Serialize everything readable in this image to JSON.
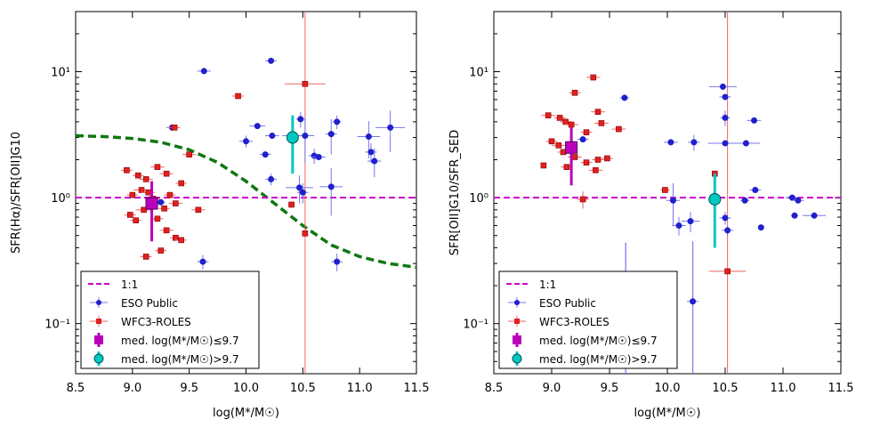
{
  "colors": {
    "eso": "#2020cc",
    "eso_err": "#7777ee",
    "wfc3": "#e02020",
    "wfc3_err": "#ee6666",
    "med_low": "#bb00bb",
    "med_high": "#00c8c0",
    "one_to_one": "#cc00cc",
    "curve": "#117711"
  },
  "chart_data": [
    {
      "type": "scatter",
      "xlabel": "log(M*/M☉)",
      "ylabel": "SFR(Hα)/SFR[OII]G10",
      "xlim": [
        8.5,
        11.5
      ],
      "ylim": [
        0.04,
        30
      ],
      "xscale": "linear",
      "yscale": "log",
      "x_ticks": [
        8.5,
        9.0,
        9.5,
        10.0,
        10.5,
        11.0,
        11.5
      ],
      "x_tick_labels": [
        "8.5",
        "9.0",
        "9.5",
        "10.0",
        "10.5",
        "11.0",
        "11.5"
      ],
      "y_ticks": [
        0.1,
        1,
        10
      ],
      "y_tick_labels": [
        "10⁻¹",
        "10⁰",
        "10¹"
      ],
      "reference_line": {
        "name": "1:1",
        "y": 1.0
      },
      "model_curve": {
        "name": "model",
        "x": [
          8.5,
          8.75,
          9.0,
          9.25,
          9.5,
          9.75,
          10.0,
          10.25,
          10.5,
          10.75,
          11.0,
          11.25,
          11.5
        ],
        "y": [
          3.1,
          3.05,
          2.95,
          2.75,
          2.4,
          1.9,
          1.35,
          0.9,
          0.6,
          0.42,
          0.34,
          0.3,
          0.28
        ]
      },
      "series": [
        {
          "name": "ESO Public",
          "points": [
            {
              "x": 9.63,
              "y": 10.1,
              "xerr": 0.06,
              "yerr": 0
            },
            {
              "x": 10.22,
              "y": 12.2,
              "xerr": 0.05,
              "yerr": 0.08
            },
            {
              "x": 9.35,
              "y": 3.6,
              "xerr": 0.05,
              "yerr": 0
            },
            {
              "x": 10.1,
              "y": 3.7,
              "xerr": 0.07,
              "yerr": 0
            },
            {
              "x": 10.23,
              "y": 3.1,
              "xerr": 0.06,
              "yerr": 0.1
            },
            {
              "x": 10.4,
              "y": 3.1,
              "xerr": 0.08,
              "yerr": 0.3
            },
            {
              "x": 10.0,
              "y": 2.8,
              "xerr": 0.06,
              "yerr": 0.3
            },
            {
              "x": 10.17,
              "y": 2.2,
              "xerr": 0.05,
              "yerr": 0
            },
            {
              "x": 10.48,
              "y": 4.2,
              "xerr": 0.04,
              "yerr": 0.6
            },
            {
              "x": 10.52,
              "y": 3.1,
              "xerr": 0.08,
              "yerr": 1.2
            },
            {
              "x": 10.6,
              "y": 2.15,
              "xerr": 0.05,
              "yerr": 0.3
            },
            {
              "x": 10.64,
              "y": 2.1,
              "xerr": 0.06,
              "yerr": 0
            },
            {
              "x": 10.75,
              "y": 3.2,
              "xerr": 0.05,
              "yerr": 1.0
            },
            {
              "x": 10.8,
              "y": 4.0,
              "xerr": 0.04,
              "yerr": 0.5
            },
            {
              "x": 11.08,
              "y": 3.05,
              "xerr": 0.1,
              "yerr": 1.0
            },
            {
              "x": 11.1,
              "y": 2.3,
              "xerr": 0.05,
              "yerr": 0.4
            },
            {
              "x": 11.13,
              "y": 1.95,
              "xerr": 0.06,
              "yerr": 0.5
            },
            {
              "x": 11.27,
              "y": 3.6,
              "xerr": 0.13,
              "yerr": 1.3
            },
            {
              "x": 10.22,
              "y": 1.4,
              "xerr": 0.05,
              "yerr": 0.15
            },
            {
              "x": 10.47,
              "y": 1.2,
              "xerr": 0.12,
              "yerr": 0.3
            },
            {
              "x": 10.5,
              "y": 1.1,
              "xerr": 0.05,
              "yerr": 0.2
            },
            {
              "x": 10.75,
              "y": 1.22,
              "xerr": 0.1,
              "yerr": 0.5
            },
            {
              "x": 9.62,
              "y": 0.31,
              "xerr": 0.05,
              "yerr": 0.04
            },
            {
              "x": 10.8,
              "y": 0.31,
              "xerr": 0.05,
              "yerr": 0.05
            },
            {
              "x": 9.25,
              "y": 0.92,
              "xerr": 0.04,
              "yerr": 0
            }
          ]
        },
        {
          "name": "WFC3-ROLES",
          "points": [
            {
              "x": 9.93,
              "y": 6.4,
              "xerr": 0.05,
              "yerr": 0
            },
            {
              "x": 10.52,
              "y": 8.0,
              "xerr": 0.18,
              "yerr": 0
            },
            {
              "x": 9.37,
              "y": 3.6,
              "xerr": 0.05,
              "yerr": 0
            },
            {
              "x": 9.5,
              "y": 2.2,
              "xerr": 0.06,
              "yerr": 0
            },
            {
              "x": 8.95,
              "y": 1.65,
              "xerr": 0.05,
              "yerr": 0
            },
            {
              "x": 9.05,
              "y": 1.5,
              "xerr": 0.05,
              "yerr": 0
            },
            {
              "x": 9.22,
              "y": 1.75,
              "xerr": 0.06,
              "yerr": 0
            },
            {
              "x": 9.12,
              "y": 1.4,
              "xerr": 0.06,
              "yerr": 0
            },
            {
              "x": 9.3,
              "y": 1.55,
              "xerr": 0.06,
              "yerr": 0
            },
            {
              "x": 9.43,
              "y": 1.3,
              "xerr": 0.05,
              "yerr": 0
            },
            {
              "x": 9.08,
              "y": 1.15,
              "xerr": 0.07,
              "yerr": 0
            },
            {
              "x": 9.14,
              "y": 1.1,
              "xerr": 0.06,
              "yerr": 0
            },
            {
              "x": 9.0,
              "y": 1.05,
              "xerr": 0.05,
              "yerr": 0
            },
            {
              "x": 9.18,
              "y": 0.98,
              "xerr": 0.06,
              "yerr": 0
            },
            {
              "x": 9.33,
              "y": 1.05,
              "xerr": 0.05,
              "yerr": 0
            },
            {
              "x": 9.38,
              "y": 0.9,
              "xerr": 0.06,
              "yerr": 0
            },
            {
              "x": 9.28,
              "y": 0.82,
              "xerr": 0.05,
              "yerr": 0
            },
            {
              "x": 9.1,
              "y": 0.8,
              "xerr": 0.07,
              "yerr": 0
            },
            {
              "x": 8.98,
              "y": 0.73,
              "xerr": 0.05,
              "yerr": 0
            },
            {
              "x": 9.03,
              "y": 0.66,
              "xerr": 0.05,
              "yerr": 0
            },
            {
              "x": 9.22,
              "y": 0.68,
              "xerr": 0.05,
              "yerr": 0
            },
            {
              "x": 9.3,
              "y": 0.55,
              "xerr": 0.06,
              "yerr": 0
            },
            {
              "x": 9.38,
              "y": 0.48,
              "xerr": 0.05,
              "yerr": 0
            },
            {
              "x": 9.43,
              "y": 0.46,
              "xerr": 0.05,
              "yerr": 0
            },
            {
              "x": 9.25,
              "y": 0.38,
              "xerr": 0.05,
              "yerr": 0
            },
            {
              "x": 9.12,
              "y": 0.34,
              "xerr": 0.05,
              "yerr": 0
            },
            {
              "x": 9.58,
              "y": 0.8,
              "xerr": 0.06,
              "yerr": 0
            },
            {
              "x": 10.4,
              "y": 0.88,
              "xerr": 0.03,
              "yerr": 0
            },
            {
              "x": 10.52,
              "y": 0.52,
              "xerr": 0.0,
              "yerr": 0
            }
          ]
        },
        {
          "name": "med. log(M*/M☉)≤9.7",
          "points": [
            {
              "x": 9.17,
              "y": 0.9,
              "y_low": 0.45,
              "y_high": 1.35
            }
          ]
        },
        {
          "name": "med. log(M*/M☉)>9.7",
          "points": [
            {
              "x": 10.41,
              "y": 3.0,
              "y_low": 1.55,
              "y_high": 4.5
            }
          ]
        }
      ],
      "legend": {
        "placement": "lower-left",
        "entries": [
          "1:1",
          "ESO Public",
          "WFC3-ROLES",
          "med. log(M*/M☉)≤9.7",
          "med. log(M*/M☉)>9.7"
        ]
      }
    },
    {
      "type": "scatter",
      "xlabel": "log(M*/M☉)",
      "ylabel": "SFR[OII]G10/SFR_SED",
      "xlim": [
        8.5,
        11.5
      ],
      "ylim": [
        0.04,
        30
      ],
      "xscale": "linear",
      "yscale": "log",
      "x_ticks": [
        8.5,
        9.0,
        9.5,
        10.0,
        10.5,
        11.0,
        11.5
      ],
      "x_tick_labels": [
        "8.5",
        "9.0",
        "9.5",
        "10.0",
        "10.5",
        "11.0",
        "11.5"
      ],
      "y_ticks": [
        0.1,
        1,
        10
      ],
      "y_tick_labels": [
        "10⁻¹",
        "10⁰",
        "10¹"
      ],
      "reference_line": {
        "name": "1:1",
        "y": 1.0
      },
      "series": [
        {
          "name": "ESO Public",
          "points": [
            {
              "x": 9.63,
              "y": 6.2,
              "xerr": 0.04,
              "yerr": 0
            },
            {
              "x": 10.48,
              "y": 7.6,
              "xerr": 0.12,
              "yerr": 0
            },
            {
              "x": 10.5,
              "y": 6.3,
              "xerr": 0.05,
              "yerr": 0
            },
            {
              "x": 10.5,
              "y": 4.3,
              "xerr": 0.04,
              "yerr": 0.6
            },
            {
              "x": 10.75,
              "y": 4.1,
              "xerr": 0.06,
              "yerr": 0
            },
            {
              "x": 9.27,
              "y": 2.9,
              "xerr": 0.05,
              "yerr": 0
            },
            {
              "x": 10.03,
              "y": 2.75,
              "xerr": 0.06,
              "yerr": 0
            },
            {
              "x": 10.23,
              "y": 2.75,
              "xerr": 0.05,
              "yerr": 0.4
            },
            {
              "x": 10.5,
              "y": 2.7,
              "xerr": 0.15,
              "yerr": 0
            },
            {
              "x": 10.68,
              "y": 2.7,
              "xerr": 0.12,
              "yerr": 0
            },
            {
              "x": 10.76,
              "y": 1.15,
              "xerr": 0.05,
              "yerr": 0
            },
            {
              "x": 10.67,
              "y": 0.95,
              "xerr": 0.04,
              "yerr": 0
            },
            {
              "x": 11.08,
              "y": 1.0,
              "xerr": 0.06,
              "yerr": 0
            },
            {
              "x": 11.13,
              "y": 0.95,
              "xerr": 0.05,
              "yerr": 0
            },
            {
              "x": 11.27,
              "y": 0.72,
              "xerr": 0.1,
              "yerr": 0
            },
            {
              "x": 11.1,
              "y": 0.72,
              "xerr": 0.03,
              "yerr": 0
            },
            {
              "x": 10.81,
              "y": 0.58,
              "xerr": 0.0,
              "yerr": 0
            },
            {
              "x": 10.05,
              "y": 0.95,
              "xerr": 0.06,
              "yerr": 0.35
            },
            {
              "x": 10.1,
              "y": 0.6,
              "xerr": 0.06,
              "yerr": 0.1
            },
            {
              "x": 10.2,
              "y": 0.65,
              "xerr": 0.08,
              "yerr": 0.12
            },
            {
              "x": 10.5,
              "y": 0.69,
              "xerr": 0.05,
              "yerr": 0.08
            },
            {
              "x": 10.52,
              "y": 0.55,
              "xerr": 0.05,
              "yerr": 0.05
            },
            {
              "x": 10.22,
              "y": 0.15,
              "xerr": 0.05,
              "yerr": 0.3
            },
            {
              "x": 9.64,
              "y": 0.24,
              "xerr": 0.05,
              "yerr": 0.2
            }
          ]
        },
        {
          "name": "WFC3-ROLES",
          "points": [
            {
              "x": 9.36,
              "y": 9.0,
              "xerr": 0.06,
              "yerr": 0
            },
            {
              "x": 9.2,
              "y": 6.8,
              "xerr": 0.05,
              "yerr": 0
            },
            {
              "x": 8.97,
              "y": 4.5,
              "xerr": 0.06,
              "yerr": 0
            },
            {
              "x": 9.07,
              "y": 4.3,
              "xerr": 0.05,
              "yerr": 0
            },
            {
              "x": 9.12,
              "y": 4.0,
              "xerr": 0.05,
              "yerr": 0
            },
            {
              "x": 9.17,
              "y": 3.8,
              "xerr": 0.06,
              "yerr": 0
            },
            {
              "x": 9.4,
              "y": 4.8,
              "xerr": 0.06,
              "yerr": 0
            },
            {
              "x": 9.43,
              "y": 3.9,
              "xerr": 0.06,
              "yerr": 0
            },
            {
              "x": 9.3,
              "y": 3.3,
              "xerr": 0.05,
              "yerr": 0
            },
            {
              "x": 9.58,
              "y": 3.5,
              "xerr": 0.06,
              "yerr": 0
            },
            {
              "x": 9.0,
              "y": 2.8,
              "xerr": 0.05,
              "yerr": 0
            },
            {
              "x": 9.06,
              "y": 2.6,
              "xerr": 0.06,
              "yerr": 0
            },
            {
              "x": 9.1,
              "y": 2.3,
              "xerr": 0.05,
              "yerr": 0
            },
            {
              "x": 9.2,
              "y": 2.1,
              "xerr": 0.06,
              "yerr": 0
            },
            {
              "x": 9.3,
              "y": 1.9,
              "xerr": 0.05,
              "yerr": 0
            },
            {
              "x": 9.4,
              "y": 2.0,
              "xerr": 0.05,
              "yerr": 0
            },
            {
              "x": 9.48,
              "y": 2.05,
              "xerr": 0.05,
              "yerr": 0
            },
            {
              "x": 9.38,
              "y": 1.65,
              "xerr": 0.06,
              "yerr": 0
            },
            {
              "x": 8.93,
              "y": 1.8,
              "xerr": 0.0,
              "yerr": 0
            },
            {
              "x": 9.13,
              "y": 1.75,
              "xerr": 0.05,
              "yerr": 0
            },
            {
              "x": 9.98,
              "y": 1.15,
              "xerr": 0.04,
              "yerr": 0
            },
            {
              "x": 9.27,
              "y": 0.97,
              "xerr": 0.05,
              "yerr": 0.15
            },
            {
              "x": 10.41,
              "y": 1.55,
              "xerr": 0.0,
              "yerr": 0
            },
            {
              "x": 10.52,
              "y": 0.26,
              "xerr": 0.16,
              "yerr": 0
            }
          ]
        },
        {
          "name": "med. log(M*/M☉)≤9.7",
          "points": [
            {
              "x": 9.17,
              "y": 2.5,
              "y_low": 1.25,
              "y_high": 3.6
            }
          ]
        },
        {
          "name": "med. log(M*/M☉)>9.7",
          "points": [
            {
              "x": 10.41,
              "y": 0.97,
              "y_low": 0.4,
              "y_high": 1.55
            }
          ]
        }
      ],
      "legend": {
        "placement": "lower-left",
        "entries": [
          "1:1",
          "ESO Public",
          "WFC3-ROLES",
          "med. log(M*/M☉)≤9.7",
          "med. log(M*/M☉)>9.7"
        ]
      }
    }
  ]
}
